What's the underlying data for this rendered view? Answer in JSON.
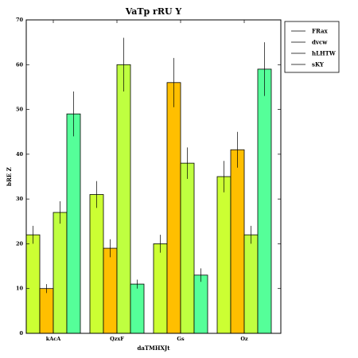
{
  "chart_data": {
    "type": "bar",
    "title": "VaTp rRU Y",
    "xlabel": "daTMHXJt",
    "ylabel": "bRE Z",
    "categories": [
      "kAcA",
      "QzxF",
      "Gs",
      "Oz"
    ],
    "ylim": [
      0,
      70
    ],
    "yticks": [
      0,
      10,
      20,
      30,
      40,
      50,
      60,
      70
    ],
    "grid": false,
    "legend_position": "outside-right",
    "series": [
      {
        "name": "FRax",
        "color": "#ccff33",
        "values": [
          22,
          31,
          20,
          35
        ],
        "errors": [
          2,
          3,
          2,
          3.5
        ]
      },
      {
        "name": "dvcw",
        "color": "#ffbf00",
        "values": [
          10,
          19,
          56,
          41
        ],
        "errors": [
          1,
          2,
          5.5,
          4
        ]
      },
      {
        "name": "hLHTW",
        "color": "#bfff40",
        "values": [
          27,
          60,
          38,
          22
        ],
        "errors": [
          2.5,
          6,
          3.5,
          2
        ]
      },
      {
        "name": "sKY",
        "color": "#55ff99",
        "values": [
          49,
          11,
          13,
          59
        ],
        "errors": [
          5,
          1,
          1.5,
          6
        ]
      }
    ]
  }
}
